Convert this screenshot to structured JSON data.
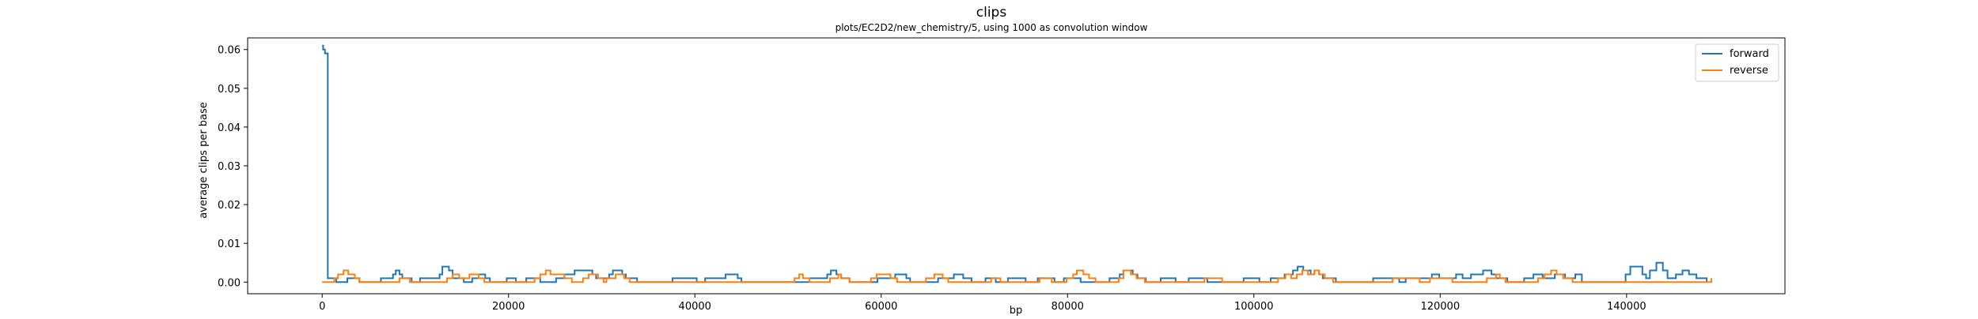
{
  "chart_data": {
    "type": "line",
    "title": "clips",
    "subtitle": "plots/EC2D2/new_chemistry/5, using 1000 as convolution window",
    "xlabel": "bp",
    "ylabel": "average clips per base",
    "xlim": [
      -8000,
      157000
    ],
    "ylim": [
      -0.003,
      0.063
    ],
    "x_ticks": [
      0,
      20000,
      40000,
      60000,
      80000,
      100000,
      120000,
      140000
    ],
    "x_tick_labels": [
      "0",
      "20000",
      "40000",
      "60000",
      "80000",
      "100000",
      "120000",
      "140000"
    ],
    "y_ticks": [
      0.0,
      0.01,
      0.02,
      0.03,
      0.04,
      0.05,
      0.06
    ],
    "y_tick_labels": [
      "0.00",
      "0.01",
      "0.02",
      "0.03",
      "0.04",
      "0.05",
      "0.06"
    ],
    "grid": false,
    "legend_position": "top-right",
    "series": [
      {
        "name": "forward",
        "color": "#1f77b4",
        "points": [
          [
            0,
            0.061
          ],
          [
            100,
            0.06
          ],
          [
            300,
            0.059
          ],
          [
            600,
            0.001
          ],
          [
            1000,
            0.001
          ],
          [
            1500,
            0.0
          ],
          [
            2300,
            0.0
          ],
          [
            2700,
            0.001
          ],
          [
            3600,
            0.001
          ],
          [
            4000,
            0.0
          ],
          [
            6000,
            0.0
          ],
          [
            6300,
            0.001
          ],
          [
            7300,
            0.001
          ],
          [
            7600,
            0.002
          ],
          [
            7900,
            0.003
          ],
          [
            8300,
            0.002
          ],
          [
            8600,
            0.001
          ],
          [
            9200,
            0.001
          ],
          [
            9600,
            0.0
          ],
          [
            10200,
            0.0
          ],
          [
            10500,
            0.001
          ],
          [
            12300,
            0.001
          ],
          [
            12600,
            0.002
          ],
          [
            12900,
            0.004
          ],
          [
            13600,
            0.003
          ],
          [
            14000,
            0.001
          ],
          [
            14800,
            0.001
          ],
          [
            15200,
            0.0
          ],
          [
            15800,
            0.0
          ],
          [
            16100,
            0.001
          ],
          [
            16800,
            0.002
          ],
          [
            17500,
            0.001
          ],
          [
            18000,
            0.0
          ],
          [
            19500,
            0.0
          ],
          [
            19800,
            0.001
          ],
          [
            20800,
            0.0
          ],
          [
            21600,
            0.0
          ],
          [
            21900,
            0.001
          ],
          [
            23000,
            0.001
          ],
          [
            23400,
            0.0
          ],
          [
            24800,
            0.0
          ],
          [
            25100,
            0.001
          ],
          [
            26000,
            0.002
          ],
          [
            26800,
            0.002
          ],
          [
            27100,
            0.003
          ],
          [
            28600,
            0.003
          ],
          [
            29000,
            0.002
          ],
          [
            29400,
            0.001
          ],
          [
            30500,
            0.001
          ],
          [
            30800,
            0.002
          ],
          [
            31200,
            0.003
          ],
          [
            32200,
            0.002
          ],
          [
            32600,
            0.001
          ],
          [
            33500,
            0.001
          ],
          [
            33800,
            0.0
          ],
          [
            37300,
            0.0
          ],
          [
            37600,
            0.001
          ],
          [
            39800,
            0.001
          ],
          [
            40200,
            0.0
          ],
          [
            40800,
            0.0
          ],
          [
            41100,
            0.001
          ],
          [
            43000,
            0.001
          ],
          [
            43300,
            0.002
          ],
          [
            44600,
            0.001
          ],
          [
            45000,
            0.0
          ],
          [
            52000,
            0.0
          ],
          [
            52300,
            0.001
          ],
          [
            53800,
            0.001
          ],
          [
            54200,
            0.002
          ],
          [
            54600,
            0.003
          ],
          [
            55200,
            0.002
          ],
          [
            55700,
            0.001
          ],
          [
            56600,
            0.0
          ],
          [
            59300,
            0.0
          ],
          [
            59600,
            0.001
          ],
          [
            61200,
            0.001
          ],
          [
            61500,
            0.002
          ],
          [
            62700,
            0.001
          ],
          [
            63100,
            0.0
          ],
          [
            65800,
            0.0
          ],
          [
            66100,
            0.001
          ],
          [
            67500,
            0.001
          ],
          [
            67800,
            0.002
          ],
          [
            68800,
            0.001
          ],
          [
            69400,
            0.001
          ],
          [
            69700,
            0.0
          ],
          [
            70900,
            0.0
          ],
          [
            71200,
            0.001
          ],
          [
            72000,
            0.001
          ],
          [
            72300,
            0.0
          ],
          [
            73300,
            0.0
          ],
          [
            73600,
            0.001
          ],
          [
            75200,
            0.001
          ],
          [
            75500,
            0.0
          ],
          [
            76500,
            0.0
          ],
          [
            76800,
            0.001
          ],
          [
            78300,
            0.001
          ],
          [
            78600,
            0.0
          ],
          [
            79300,
            0.0
          ],
          [
            79600,
            0.001
          ],
          [
            81000,
            0.001
          ],
          [
            81400,
            0.0
          ],
          [
            84200,
            0.0
          ],
          [
            84500,
            0.001
          ],
          [
            85600,
            0.002
          ],
          [
            86000,
            0.003
          ],
          [
            87000,
            0.002
          ],
          [
            87500,
            0.001
          ],
          [
            88400,
            0.0
          ],
          [
            89700,
            0.0
          ],
          [
            90000,
            0.001
          ],
          [
            91300,
            0.001
          ],
          [
            91600,
            0.0
          ],
          [
            92700,
            0.0
          ],
          [
            93000,
            0.001
          ],
          [
            94700,
            0.001
          ],
          [
            95000,
            0.0
          ],
          [
            98600,
            0.0
          ],
          [
            98900,
            0.001
          ],
          [
            100300,
            0.001
          ],
          [
            100600,
            0.0
          ],
          [
            101500,
            0.0
          ],
          [
            101800,
            0.001
          ],
          [
            103000,
            0.001
          ],
          [
            103300,
            0.002
          ],
          [
            104200,
            0.003
          ],
          [
            104700,
            0.004
          ],
          [
            105300,
            0.003
          ],
          [
            106100,
            0.002
          ],
          [
            106500,
            0.003
          ],
          [
            107000,
            0.002
          ],
          [
            107400,
            0.001
          ],
          [
            108800,
            0.0
          ],
          [
            112500,
            0.0
          ],
          [
            112800,
            0.001
          ],
          [
            115300,
            0.001
          ],
          [
            115600,
            0.0
          ],
          [
            116000,
            0.0
          ],
          [
            116300,
            0.001
          ],
          [
            118800,
            0.001
          ],
          [
            119100,
            0.002
          ],
          [
            119900,
            0.001
          ],
          [
            121400,
            0.001
          ],
          [
            121700,
            0.002
          ],
          [
            122400,
            0.001
          ],
          [
            123000,
            0.001
          ],
          [
            123300,
            0.002
          ],
          [
            124300,
            0.002
          ],
          [
            124600,
            0.003
          ],
          [
            125500,
            0.002
          ],
          [
            126000,
            0.001
          ],
          [
            127200,
            0.0
          ],
          [
            128700,
            0.0
          ],
          [
            129000,
            0.001
          ],
          [
            130000,
            0.002
          ],
          [
            131000,
            0.001
          ],
          [
            132000,
            0.001
          ],
          [
            132300,
            0.002
          ],
          [
            133400,
            0.001
          ],
          [
            134200,
            0.001
          ],
          [
            134500,
            0.002
          ],
          [
            135200,
            0.0
          ],
          [
            139600,
            0.0
          ],
          [
            139900,
            0.002
          ],
          [
            140400,
            0.004
          ],
          [
            141400,
            0.004
          ],
          [
            141700,
            0.002
          ],
          [
            142100,
            0.001
          ],
          [
            142500,
            0.003
          ],
          [
            143200,
            0.005
          ],
          [
            143900,
            0.003
          ],
          [
            144400,
            0.001
          ],
          [
            145300,
            0.002
          ],
          [
            146000,
            0.003
          ],
          [
            146700,
            0.002
          ],
          [
            147500,
            0.001
          ],
          [
            148600,
            0.0
          ]
        ]
      },
      {
        "name": "reverse",
        "color": "#ff7f0e",
        "points": [
          [
            0,
            0.0
          ],
          [
            1000,
            0.0
          ],
          [
            1300,
            0.001
          ],
          [
            1700,
            0.002
          ],
          [
            2300,
            0.003
          ],
          [
            2800,
            0.002
          ],
          [
            3500,
            0.001
          ],
          [
            4000,
            0.0
          ],
          [
            8000,
            0.0
          ],
          [
            8300,
            0.001
          ],
          [
            9100,
            0.001
          ],
          [
            9400,
            0.0
          ],
          [
            13100,
            0.0
          ],
          [
            13400,
            0.001
          ],
          [
            14000,
            0.002
          ],
          [
            14700,
            0.001
          ],
          [
            15800,
            0.002
          ],
          [
            16400,
            0.002
          ],
          [
            16800,
            0.001
          ],
          [
            17400,
            0.0
          ],
          [
            22500,
            0.0
          ],
          [
            22800,
            0.001
          ],
          [
            23400,
            0.002
          ],
          [
            24000,
            0.003
          ],
          [
            24500,
            0.002
          ],
          [
            25400,
            0.002
          ],
          [
            26000,
            0.001
          ],
          [
            26800,
            0.0
          ],
          [
            27700,
            0.0
          ],
          [
            28000,
            0.001
          ],
          [
            28600,
            0.002
          ],
          [
            29600,
            0.001
          ],
          [
            30200,
            0.0
          ],
          [
            30500,
            0.001
          ],
          [
            31500,
            0.002
          ],
          [
            32400,
            0.001
          ],
          [
            33000,
            0.0
          ],
          [
            50400,
            0.0
          ],
          [
            50700,
            0.001
          ],
          [
            51200,
            0.002
          ],
          [
            51600,
            0.001
          ],
          [
            52300,
            0.0
          ],
          [
            54200,
            0.0
          ],
          [
            54500,
            0.001
          ],
          [
            55400,
            0.002
          ],
          [
            55700,
            0.001
          ],
          [
            56600,
            0.0
          ],
          [
            58600,
            0.0
          ],
          [
            58900,
            0.001
          ],
          [
            59500,
            0.002
          ],
          [
            60600,
            0.002
          ],
          [
            61000,
            0.001
          ],
          [
            61700,
            0.0
          ],
          [
            64500,
            0.0
          ],
          [
            64800,
            0.001
          ],
          [
            65700,
            0.002
          ],
          [
            66600,
            0.001
          ],
          [
            67200,
            0.0
          ],
          [
            71500,
            0.0
          ],
          [
            71800,
            0.001
          ],
          [
            72500,
            0.001
          ],
          [
            72800,
            0.0
          ],
          [
            76700,
            0.0
          ],
          [
            77000,
            0.001
          ],
          [
            78000,
            0.001
          ],
          [
            78300,
            0.0
          ],
          [
            79600,
            0.0
          ],
          [
            79900,
            0.001
          ],
          [
            80600,
            0.002
          ],
          [
            81000,
            0.003
          ],
          [
            81700,
            0.002
          ],
          [
            82300,
            0.001
          ],
          [
            83000,
            0.0
          ],
          [
            85200,
            0.0
          ],
          [
            85500,
            0.001
          ],
          [
            86000,
            0.003
          ],
          [
            86800,
            0.002
          ],
          [
            87400,
            0.001
          ],
          [
            88300,
            0.0
          ],
          [
            94400,
            0.0
          ],
          [
            94700,
            0.001
          ],
          [
            96200,
            0.001
          ],
          [
            96600,
            0.0
          ],
          [
            102300,
            0.0
          ],
          [
            102600,
            0.001
          ],
          [
            103400,
            0.002
          ],
          [
            104000,
            0.001
          ],
          [
            104600,
            0.002
          ],
          [
            105200,
            0.003
          ],
          [
            105800,
            0.002
          ],
          [
            106500,
            0.003
          ],
          [
            107000,
            0.002
          ],
          [
            107600,
            0.001
          ],
          [
            108500,
            0.0
          ],
          [
            114600,
            0.0
          ],
          [
            114900,
            0.001
          ],
          [
            117500,
            0.001
          ],
          [
            117800,
            0.0
          ],
          [
            118600,
            0.0
          ],
          [
            118900,
            0.001
          ],
          [
            121000,
            0.001
          ],
          [
            121300,
            0.0
          ],
          [
            124700,
            0.0
          ],
          [
            125000,
            0.001
          ],
          [
            126000,
            0.002
          ],
          [
            126400,
            0.001
          ],
          [
            127000,
            0.0
          ],
          [
            130200,
            0.0
          ],
          [
            130500,
            0.001
          ],
          [
            131200,
            0.002
          ],
          [
            131900,
            0.003
          ],
          [
            132500,
            0.002
          ],
          [
            133200,
            0.001
          ],
          [
            134200,
            0.0
          ],
          [
            149000,
            0.0
          ],
          [
            149100,
            0.001
          ]
        ]
      }
    ]
  }
}
